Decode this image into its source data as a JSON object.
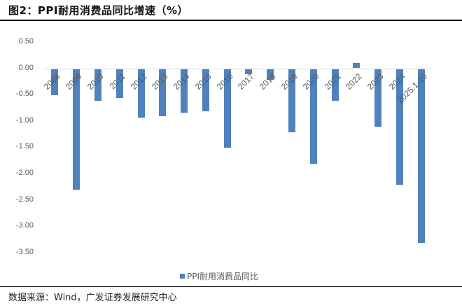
{
  "header": {
    "title": "图2：PPI耐用消费品同比增速（%）"
  },
  "footer": {
    "source": "数据来源：Wind，广发证券发展研究中心"
  },
  "colors": {
    "bar": "#4f81bd",
    "gridline": "#d9d9d9",
    "axis_text": "#595959"
  },
  "chart_data": {
    "type": "bar",
    "title": "PPI耐用消费品同比增速（%）",
    "xlabel": "",
    "ylabel": "",
    "ylim": [
      -3.5,
      0.5
    ],
    "yticks": [
      "0.50",
      "0.00",
      "-0.50",
      "-1.00",
      "-1.50",
      "-2.00",
      "-2.50",
      "-3.00",
      "-3.50"
    ],
    "grid": false,
    "legend_position": "bottom",
    "categories": [
      "2008",
      "2009",
      "2010",
      "2011",
      "2012",
      "2013",
      "2014",
      "2015",
      "2016",
      "2017",
      "2018",
      "2019",
      "2020",
      "2021",
      "2022",
      "2023",
      "2024",
      "2025.1-10"
    ],
    "series": [
      {
        "name": "PPI耐用消费品同比",
        "values": [
          -0.5,
          -2.3,
          -0.6,
          -0.55,
          -0.92,
          -0.9,
          -0.83,
          -0.8,
          -1.5,
          -0.1,
          -0.2,
          -1.2,
          -1.8,
          -0.6,
          0.1,
          -1.1,
          -2.2,
          -3.3
        ]
      }
    ]
  }
}
